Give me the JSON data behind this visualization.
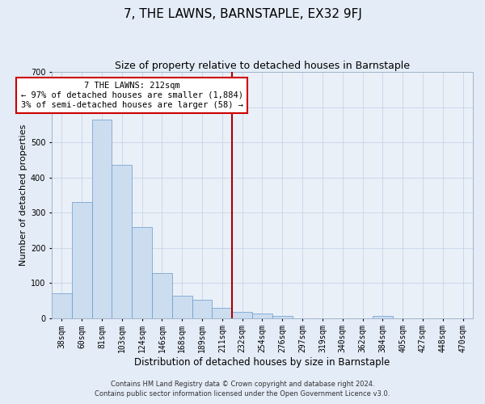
{
  "title": "7, THE LAWNS, BARNSTAPLE, EX32 9FJ",
  "subtitle": "Size of property relative to detached houses in Barnstaple",
  "xlabel": "Distribution of detached houses by size in Barnstaple",
  "ylabel": "Number of detached properties",
  "footer_line1": "Contains HM Land Registry data © Crown copyright and database right 2024.",
  "footer_line2": "Contains public sector information licensed under the Open Government Licence v3.0.",
  "bin_labels": [
    "38sqm",
    "60sqm",
    "81sqm",
    "103sqm",
    "124sqm",
    "146sqm",
    "168sqm",
    "189sqm",
    "211sqm",
    "232sqm",
    "254sqm",
    "276sqm",
    "297sqm",
    "319sqm",
    "340sqm",
    "362sqm",
    "384sqm",
    "405sqm",
    "427sqm",
    "448sqm",
    "470sqm"
  ],
  "bar_values": [
    70,
    330,
    565,
    435,
    258,
    127,
    63,
    52,
    28,
    17,
    12,
    5,
    0,
    0,
    0,
    0,
    5,
    0,
    0,
    0,
    0
  ],
  "bar_color": "#ccddf0",
  "bar_edge_color": "#6699cc",
  "vline_x_index": 8.5,
  "vline_color": "#aa0000",
  "annotation_line1": "7 THE LAWNS: 212sqm",
  "annotation_line2": "← 97% of detached houses are smaller (1,884)",
  "annotation_line3": "3% of semi-detached houses are larger (58) →",
  "annotation_box_edgecolor": "#cc0000",
  "ylim": [
    0,
    700
  ],
  "yticks": [
    0,
    100,
    200,
    300,
    400,
    500,
    600,
    700
  ],
  "grid_color": "#c8d4e8",
  "bg_color": "#e4ecf7",
  "plot_bg_color": "#eaf0f8",
  "title_fontsize": 11,
  "subtitle_fontsize": 9,
  "xlabel_fontsize": 8.5,
  "ylabel_fontsize": 8,
  "tick_fontsize": 7,
  "annotation_fontsize": 7.5
}
